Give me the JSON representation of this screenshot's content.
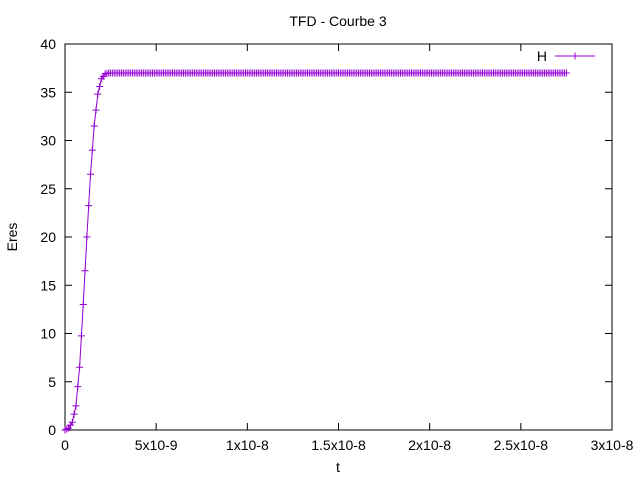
{
  "chart_data": {
    "type": "line",
    "title": "TFD - Courbe 3",
    "xlabel": "t",
    "ylabel": "Eres",
    "xlim": [
      0,
      3e-08
    ],
    "ylim": [
      0,
      40
    ],
    "x_ticks": [
      0,
      5e-09,
      1e-08,
      1.5e-08,
      2e-08,
      2.5e-08,
      3e-08
    ],
    "x_tick_labels": [
      "0",
      "5x10-9",
      "1x10-8",
      "1.5x10-8",
      "2x10-8",
      "2.5x10-8",
      "3x10-8"
    ],
    "y_ticks": [
      0,
      5,
      10,
      15,
      20,
      25,
      30,
      35,
      40
    ],
    "y_tick_labels": [
      "0",
      "5",
      "10",
      "15",
      "20",
      "25",
      "30",
      "35",
      "40"
    ],
    "grid": false,
    "legend_position": "top-right",
    "series": [
      {
        "name": "H",
        "color": "#9400d3",
        "marker": "plus",
        "x_start": 0,
        "x_end": 2.75e-08,
        "x_step": 1e-10,
        "x_samples": [
          0,
          2e-10,
          4e-10,
          6e-10,
          8e-10,
          1e-09,
          1.2e-09,
          1.4e-09,
          1.6e-09,
          1.8e-09,
          2e-09,
          2.2e-09,
          2.4e-09,
          2.6e-09,
          3e-09,
          5e-09,
          1e-08,
          2e-08,
          2.75e-08
        ],
        "y_samples": [
          0,
          0.2,
          0.8,
          2.5,
          6.5,
          13,
          20,
          26.5,
          31.5,
          34.8,
          36.4,
          36.9,
          37.0,
          37.0,
          37.0,
          37.0,
          37.0,
          37.0,
          37.0
        ]
      }
    ]
  }
}
